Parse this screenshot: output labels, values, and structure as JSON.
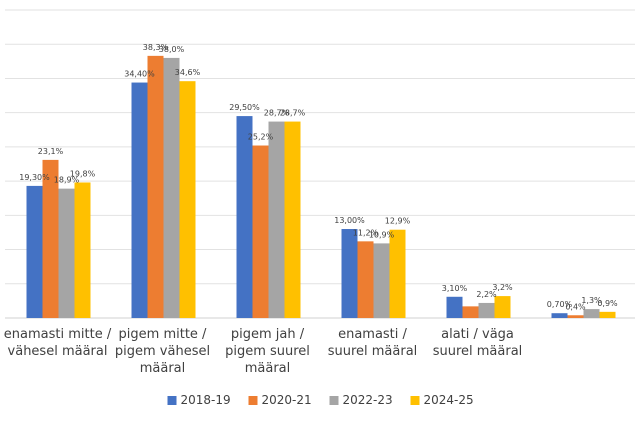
{
  "chart_data": {
    "type": "bar",
    "categories": [
      [
        "enamasti mitte /",
        "vähesel määral"
      ],
      [
        "pigem mitte /",
        "pigem vähesel",
        "määral"
      ],
      [
        "pigem jah /",
        "pigem suurel",
        "määral"
      ],
      [
        "enamasti /",
        "suurel määral"
      ],
      [
        "alati / väga",
        "suurel määral"
      ],
      [
        ""
      ]
    ],
    "series": [
      {
        "name": "2018-19",
        "color": "#4472c4",
        "values": [
          19.3,
          34.4,
          29.5,
          13.0,
          3.1,
          0.7
        ],
        "labels": [
          "19,30%",
          "34,40%",
          "29,50%",
          "13,00%",
          "3,10%",
          "0,70%"
        ]
      },
      {
        "name": "2020-21",
        "color": "#ed7d31",
        "values": [
          23.1,
          38.3,
          25.2,
          11.2,
          1.7,
          0.4
        ],
        "labels": [
          "23,1%",
          "38,3%",
          "25,2%",
          "11,2%",
          "",
          "0,4%"
        ]
      },
      {
        "name": "2022-23",
        "color": "#a5a5a5",
        "values": [
          18.9,
          38.0,
          28.7,
          10.9,
          2.2,
          1.3
        ],
        "labels": [
          "18,9%",
          "38,0%",
          "28,7%",
          "10,9%",
          "2,2%",
          "1,3%"
        ]
      },
      {
        "name": "2024-25",
        "color": "#ffc000",
        "values": [
          19.8,
          34.6,
          28.7,
          12.9,
          3.2,
          0.9
        ],
        "labels": [
          "19,8%",
          "34,6%",
          "28,7%",
          "12,9%",
          "3,2%",
          "0,9%"
        ]
      }
    ],
    "ylim": [
      0,
      45
    ],
    "grid": true,
    "legend_position": "bottom",
    "title": "",
    "xlabel": "",
    "ylabel": ""
  }
}
